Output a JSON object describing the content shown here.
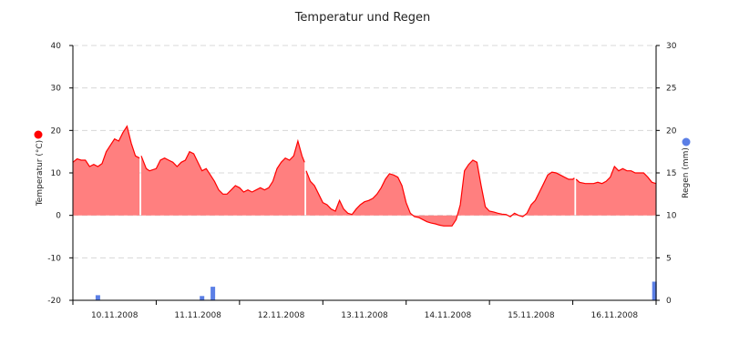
{
  "chart_data": {
    "type": "area",
    "title": "Temperatur und Regen",
    "ylabel": "Temperatur (°C)",
    "y2label": "Regen (mm)",
    "ylim": [
      -20,
      40
    ],
    "y2lim": [
      0,
      30
    ],
    "yticks": [
      "-20",
      "-10",
      "0",
      "10",
      "20",
      "30",
      "40"
    ],
    "y2ticks": [
      "0",
      "5",
      "10",
      "15",
      "20",
      "25",
      "30"
    ],
    "xlim": [
      0,
      7
    ],
    "x_tick_labels": [
      "10.11.2008",
      "11.11.2008",
      "12.11.2008",
      "13.11.2008",
      "14.11.2008",
      "15.11.2008",
      "16.11.2008"
    ],
    "grid": true,
    "colors": {
      "temperature": "#ff0000",
      "temperature_fill": "#ff7f7f",
      "rain": "#5b7fe6",
      "axis": "#000000"
    },
    "series": [
      {
        "type": "area",
        "axis": "left",
        "segments": [
          {
            "x": [
              0,
              0.05,
              0.1,
              0.15,
              0.2,
              0.25,
              0.3,
              0.35,
              0.4,
              0.45,
              0.5,
              0.55,
              0.6,
              0.65,
              0.7,
              0.75,
              0.8
            ],
            "y": [
              12.5,
              13.3,
              13.0,
              13.0,
              11.5,
              12.0,
              11.5,
              12.2,
              15.0,
              16.5,
              18.0,
              17.5,
              19.5,
              21.0,
              17.0,
              14.0,
              13.5
            ]
          },
          {
            "x": [
              0.82,
              0.88,
              0.92,
              1.0,
              1.05,
              1.1,
              1.15,
              1.2,
              1.25,
              1.3,
              1.35,
              1.4,
              1.45,
              1.5,
              1.55,
              1.6,
              1.65,
              1.7,
              1.75,
              1.8,
              1.85,
              1.9,
              1.95,
              2.0,
              2.05,
              2.1,
              2.15,
              2.2,
              2.25,
              2.3,
              2.35,
              2.4,
              2.45,
              2.5,
              2.55,
              2.6,
              2.65,
              2.7,
              2.75,
              2.78
            ],
            "y": [
              14.0,
              11.0,
              10.5,
              11.0,
              13.0,
              13.5,
              13.0,
              12.5,
              11.5,
              12.5,
              13.0,
              15.0,
              14.5,
              12.5,
              10.5,
              11.0,
              9.5,
              8.0,
              6.0,
              5.0,
              5.0,
              6.0,
              7.0,
              6.5,
              5.5,
              6.0,
              5.5,
              6.0,
              6.5,
              6.0,
              6.5,
              8.0,
              11.0,
              12.5,
              13.5,
              13.0,
              14.0,
              17.5,
              14.0,
              12.5
            ]
          },
          {
            "x": [
              2.8,
              2.85,
              2.9,
              2.95,
              3.0,
              3.05,
              3.1,
              3.15,
              3.2,
              3.25,
              3.3,
              3.35,
              3.4,
              3.45,
              3.5,
              3.55,
              3.6,
              3.65,
              3.7,
              3.75,
              3.8,
              3.85,
              3.9,
              3.95,
              4.0,
              4.05,
              4.1,
              4.15,
              4.2,
              4.25,
              4.3,
              4.35,
              4.4,
              4.45,
              4.5,
              4.55,
              4.6,
              4.65,
              4.7,
              4.75,
              4.8,
              4.85,
              4.9,
              4.95,
              5.0,
              5.05,
              5.1,
              5.15,
              5.2,
              5.25,
              5.3,
              5.35,
              5.4,
              5.45,
              5.5,
              5.55,
              5.6,
              5.65,
              5.7,
              5.75,
              5.8,
              5.85,
              5.9,
              5.95,
              6.0,
              6.02
            ],
            "y": [
              10.5,
              8.0,
              7.0,
              5.0,
              3.0,
              2.5,
              1.5,
              1.0,
              3.5,
              1.5,
              0.5,
              0.2,
              1.5,
              2.5,
              3.2,
              3.5,
              4.0,
              5.0,
              6.5,
              8.5,
              9.8,
              9.5,
              9.0,
              7.0,
              3.0,
              0.5,
              -0.3,
              -0.5,
              -1.0,
              -1.5,
              -1.8,
              -2.0,
              -2.3,
              -2.5,
              -2.5,
              -2.5,
              -1.0,
              2.5,
              10.5,
              12.0,
              13.0,
              12.5,
              7.0,
              2.0,
              1.0,
              0.8,
              0.5,
              0.3,
              0.2,
              -0.3,
              0.5,
              0.0,
              -0.3,
              0.5,
              2.5,
              3.5,
              5.5,
              7.5,
              9.5,
              10.2,
              10.0,
              9.5,
              9.0,
              8.5,
              8.5,
              8.8
            ]
          },
          {
            "x": [
              6.04,
              6.08,
              6.15,
              6.2,
              6.25,
              6.3,
              6.35,
              6.4,
              6.45,
              6.5,
              6.55,
              6.6,
              6.65,
              6.7,
              6.75,
              6.8,
              6.85,
              6.9,
              6.95,
              7.0
            ],
            "y": [
              8.5,
              7.8,
              7.5,
              7.5,
              7.5,
              7.8,
              7.5,
              8.0,
              9.0,
              11.5,
              10.5,
              11.0,
              10.5,
              10.5,
              10.0,
              10.0,
              10.0,
              9.0,
              7.8,
              7.5
            ]
          }
        ]
      },
      {
        "type": "bar",
        "axis": "right",
        "x": [
          0.3,
          1.55,
          1.68,
          6.98
        ],
        "y": [
          0.6,
          0.5,
          1.6,
          2.2
        ]
      }
    ]
  }
}
